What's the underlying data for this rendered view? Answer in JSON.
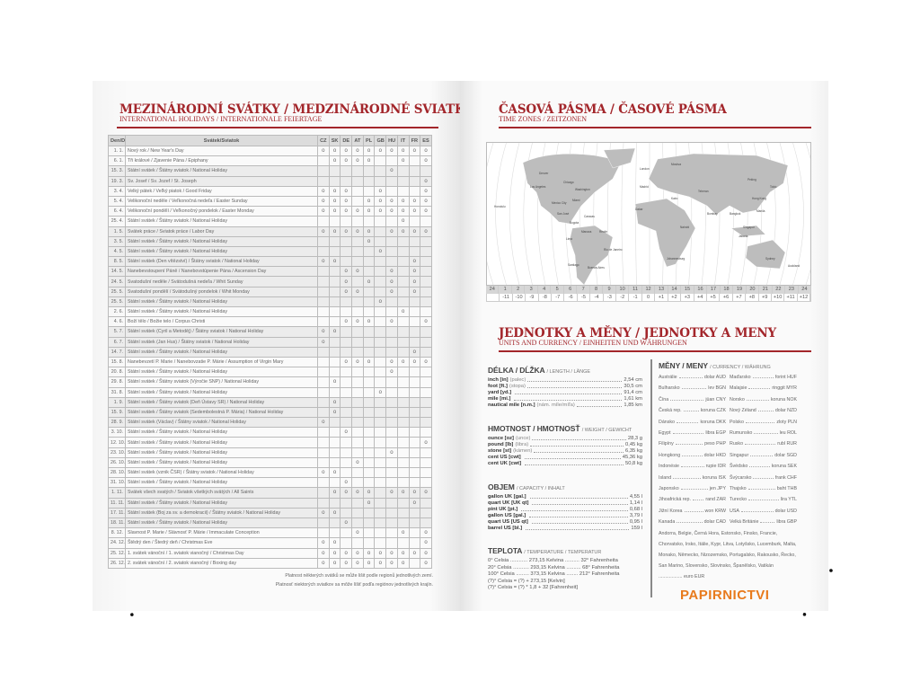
{
  "left": {
    "title": "MEZINÁRODNÍ SVÁTKY / MEDZINÁRODNÉ SVIATKY",
    "subtitle": "INTERNATIONAL HOLIDAYS / INTERNATIONALE FEIERTAGE",
    "table": {
      "headers": {
        "date": "Den/Deň",
        "name": "Svátek/Sviatok",
        "countries": [
          "CZ",
          "SK",
          "DE",
          "AT",
          "PL",
          "GB",
          "HU",
          "IT",
          "FR",
          "ES"
        ]
      },
      "mark": "o",
      "rows": [
        {
          "date": "1. 1.",
          "name": "Nový rok / New Year's Day",
          "marks": [
            0,
            1,
            2,
            3,
            4,
            5,
            6,
            7,
            8,
            9
          ]
        },
        {
          "date": "6. 1.",
          "name": "Tři králové / Zjavenie Pána / Epiphany",
          "marks": [
            1,
            2,
            3,
            4,
            7,
            9
          ]
        },
        {
          "date": "15. 3.",
          "name": "Státní svátek / Štátny sviatok / National Holiday",
          "marks": [
            6
          ]
        },
        {
          "date": "19. 3.",
          "name": "Sv. Josef / Sv. Jozef / St. Joseph",
          "marks": [
            9
          ]
        },
        {
          "date": "3. 4.",
          "name": "Velký pátek / Veľký piatok / Good Friday",
          "marks": [
            0,
            1,
            2,
            5,
            9
          ]
        },
        {
          "date": "5. 4.",
          "name": "Velikonoční neděle / Veľkonočná nedeľa / Easter Sunday",
          "marks": [
            0,
            1,
            2,
            4,
            5,
            6,
            7,
            8,
            9
          ]
        },
        {
          "date": "6. 4.",
          "name": "Velikonoční pondělí / Veľkonočný pondelok / Easter Monday",
          "marks": [
            0,
            1,
            2,
            3,
            4,
            5,
            6,
            7,
            8,
            9
          ]
        },
        {
          "date": "25. 4.",
          "name": "Státní svátek / Štátny sviatok / National Holiday",
          "marks": [
            7
          ]
        },
        {
          "date": "1. 5.",
          "name": "Svátek práce / Sviatok práce / Labor Day",
          "marks": [
            0,
            1,
            2,
            3,
            4,
            6,
            7,
            8,
            9
          ]
        },
        {
          "date": "3. 5.",
          "name": "Státní svátek / Štátny sviatok / National Holiday",
          "marks": [
            4
          ]
        },
        {
          "date": "4. 5.",
          "name": "Státní svátek / Štátny sviatok / National Holiday",
          "marks": [
            5
          ]
        },
        {
          "date": "8. 5.",
          "name": "Státní svátek (Den vítězství) / Štátny sviatok / National Holiday",
          "marks": [
            0,
            1,
            8
          ]
        },
        {
          "date": "14. 5.",
          "name": "Nanebevstoupení Páně / Nanebovstúpenie Pána / Ascension Day",
          "marks": [
            2,
            3,
            6,
            8
          ]
        },
        {
          "date": "24. 5.",
          "name": "Svatodušní neděle / Svätodušná nedeľa / Whit Sunday",
          "marks": [
            2,
            4,
            6,
            8
          ]
        },
        {
          "date": "25. 5.",
          "name": "Svatodušní pondělí / Svätodušný pondelok / Whit Monday",
          "marks": [
            2,
            3,
            6,
            8
          ]
        },
        {
          "date": "25. 5.",
          "name": "Státní svátek / Štátny sviatok / National Holiday",
          "marks": [
            5
          ]
        },
        {
          "date": "2. 6.",
          "name": "Státní svátek / Štátny sviatok / National Holiday",
          "marks": [
            7
          ]
        },
        {
          "date": "4. 6.",
          "name": "Boží tělo / Božie telo / Corpus Christi",
          "marks": [
            2,
            3,
            4,
            6,
            9
          ]
        },
        {
          "date": "5. 7.",
          "name": "Státní svátek (Cyril a Metoděj) / Štátny sviatok / National Holiday",
          "marks": [
            0,
            1
          ]
        },
        {
          "date": "6. 7.",
          "name": "Státní svátek (Jan Hus) / Štátny sviatok / National Holiday",
          "marks": [
            0
          ]
        },
        {
          "date": "14. 7.",
          "name": "Státní svátek / Štátny sviatok / National Holiday",
          "marks": [
            8
          ]
        },
        {
          "date": "15. 8.",
          "name": "Nanebevzetí P. Marie / Nanebovzatie P. Márie / Assumption of Virgin Mary",
          "marks": [
            2,
            3,
            4,
            6,
            7,
            8,
            9
          ]
        },
        {
          "date": "20. 8.",
          "name": "Státní svátek / Štátny sviatok / National Holiday",
          "marks": [
            6
          ]
        },
        {
          "date": "29. 8.",
          "name": "Státní svátek / Štátny sviatok (Výročie SNP) / National Holiday",
          "marks": [
            1
          ]
        },
        {
          "date": "31. 8.",
          "name": "Státní svátek / Štátny sviatok / National Holiday",
          "marks": [
            5
          ]
        },
        {
          "date": "1. 9.",
          "name": "Státní svátek / Štátny sviatok (Deň Ústavy SR) / National Holiday",
          "marks": [
            1
          ]
        },
        {
          "date": "15. 9.",
          "name": "Státní svátek / Štátny sviatok (Sedembolestná P. Mária) / National Holiday",
          "marks": [
            1
          ]
        },
        {
          "date": "28. 9.",
          "name": "Státní svátek (Václav) / Štátny sviatok / National Holiday",
          "marks": [
            0
          ]
        },
        {
          "date": "3. 10.",
          "name": "Státní svátek / Štátny sviatok / National Holiday",
          "marks": [
            2
          ]
        },
        {
          "date": "12. 10.",
          "name": "Státní svátek / Štátny sviatok / National Holiday",
          "marks": [
            9
          ]
        },
        {
          "date": "23. 10.",
          "name": "Státní svátek / Štátny sviatok / National Holiday",
          "marks": [
            6
          ]
        },
        {
          "date": "26. 10.",
          "name": "Státní svátek / Štátny sviatok / National Holiday",
          "marks": [
            3
          ]
        },
        {
          "date": "28. 10.",
          "name": "Státní svátek (vznik ČSR) / Štátny sviatok / National Holiday",
          "marks": [
            0,
            1
          ]
        },
        {
          "date": "31. 10.",
          "name": "Státní svátek / Štátny sviatok / National Holiday",
          "marks": [
            2
          ]
        },
        {
          "date": "1. 11.",
          "name": "Svátek všech svatých / Sviatok všetkých svätých / All Saints",
          "marks": [
            1,
            2,
            3,
            4,
            6,
            7,
            8,
            9
          ]
        },
        {
          "date": "11. 11.",
          "name": "Státní svátek / Štátny sviatok / National Holiday",
          "marks": [
            4,
            8
          ]
        },
        {
          "date": "17. 11.",
          "name": "Státní svátek (Boj za sv. a demokracii) / Štátny sviatok / National Holiday",
          "marks": [
            0,
            1
          ]
        },
        {
          "date": "18. 11.",
          "name": "Státní svátek / Štátny sviatok / National Holiday",
          "marks": [
            2
          ]
        },
        {
          "date": "8. 12.",
          "name": "Slavnost P. Marie / Slávnosť P. Márie / Immaculate Conception",
          "marks": [
            3,
            7,
            9
          ]
        },
        {
          "date": "24. 12.",
          "name": "Štědrý den / Štedrý deň / Christmas Eve",
          "marks": [
            0,
            1,
            9
          ]
        },
        {
          "date": "25. 12.",
          "name": "1. svátek vánoční / 1. sviatok vianočný / Christmas Day",
          "marks": [
            0,
            1,
            2,
            3,
            4,
            5,
            6,
            7,
            8,
            9
          ]
        },
        {
          "date": "26. 12.",
          "name": "2. svátek vánoční / 2. sviatok vianočný / Boxing day",
          "marks": [
            0,
            1,
            2,
            3,
            4,
            5,
            6,
            7,
            9
          ]
        }
      ]
    },
    "note_cz": "Platnost některých svátků se může lišit podle regionů jednotlivých zemí.",
    "note_sk": "Platnosť niektorých sviatkov sa môže líšiť podľa regiónov jednotlivých krajín."
  },
  "right": {
    "tz_title": "ČASOVÁ PÁSMA / ČASOVÉ PÁSMA",
    "tz_subtitle": "TIME ZONES / ZEITZONEN",
    "tz_hours": [
      "24",
      "1",
      "2",
      "3",
      "4",
      "5",
      "6",
      "7",
      "8",
      "9",
      "10",
      "11",
      "12",
      "13",
      "14",
      "15",
      "16",
      "17",
      "18",
      "19",
      "20",
      "21",
      "22",
      "23",
      "24"
    ],
    "tz_offsets": [
      "",
      "-11",
      "-10",
      "-9",
      "-8",
      "-7",
      "-6",
      "-5",
      "-4",
      "-3",
      "-2",
      "-1",
      "0",
      "+1",
      "+2",
      "+3",
      "+4",
      "+5",
      "+6",
      "+7",
      "+8",
      "+9",
      "+10",
      "+11",
      "+12"
    ],
    "cities": [
      "Honolulu",
      "Los Angeles",
      "Denver",
      "Chicago",
      "Washington",
      "Miami",
      "Mexico City",
      "San José",
      "Bogota",
      "Caracas",
      "Lima",
      "Manaus",
      "Recife",
      "Rio de Janeiro",
      "Santiago",
      "Buenos Aires",
      "London",
      "Madrid",
      "Dakar",
      "Moskva",
      "Kairo",
      "Nairobi",
      "Johannesburg",
      "Teheran",
      "Bombay",
      "Bangkok",
      "Peking",
      "Hong Kong",
      "Tokio",
      "Manila",
      "Singapur",
      "Jakarta",
      "Sydney",
      "Auckland"
    ],
    "units_title": "JEDNOTKY A MĚNY / JEDNOTKY A MENY",
    "units_subtitle": "UNITS AND CURRENCY / EINHEITEN UND WÄHRUNGEN",
    "length": {
      "title": "DÉLKA / DĹŽKA",
      "sub": "/ LENGTH / LÄNGE",
      "items": [
        {
          "unit": "inch [in]",
          "note": "(palec)",
          "value": "2,54 cm"
        },
        {
          "unit": "foot [ft.]",
          "note": "(stopa)",
          "value": "30,5 cm"
        },
        {
          "unit": "yard [yd.]",
          "note": "",
          "value": "91,4 cm"
        },
        {
          "unit": "mile [mi.]",
          "note": "",
          "value": "1,61 km"
        },
        {
          "unit": "nautical mile [n.m.]",
          "note": "(nám. míle/míľa)",
          "value": "1,85 km"
        }
      ]
    },
    "weight": {
      "title": "HMOTNOST / HMOTNOSŤ",
      "sub": "/ WEIGHT / GEWICHT",
      "items": [
        {
          "unit": "ounce [oz]",
          "note": "(unce)",
          "value": "28,3 g"
        },
        {
          "unit": "pound [lb]",
          "note": "(libra)",
          "value": "0,45 kg"
        },
        {
          "unit": "stone [st]",
          "note": "(kámen)",
          "value": "6,35 kg"
        },
        {
          "unit": "cent US [cwt]",
          "note": "",
          "value": "45,36 kg"
        },
        {
          "unit": "cent UK [cwt]",
          "note": "",
          "value": "50,8 kg"
        }
      ]
    },
    "capacity": {
      "title": "OBJEM",
      "sub": "/ CAPACITY / INHALT",
      "items": [
        {
          "unit": "gallon UK [gal.]",
          "note": "",
          "value": "4,55 l"
        },
        {
          "unit": "quart UK [UK qt]",
          "note": "",
          "value": "1,14 l"
        },
        {
          "unit": "pint UK [pt.]",
          "note": "",
          "value": "0,68 l"
        },
        {
          "unit": "gallon US [gal.]",
          "note": "",
          "value": "3,79 l"
        },
        {
          "unit": "quart US [US qt]",
          "note": "",
          "value": "0,95 l"
        },
        {
          "unit": "barrel US [bl.]",
          "note": "",
          "value": "159 l"
        }
      ]
    },
    "temperature": {
      "title": "TEPLOTA",
      "sub": "/ TEMPERATURE / TEMPERATUR",
      "lines": [
        "0° Celsia ............ 273,15 Kelvina .......... 32° Fahrenheita",
        "20° Celsia ........... 293,15 Kelvina .......... 68° Fahrenheita",
        "100° Celsia ......... 373,15 Kelvina ........ 212° Fahrenheita",
        "(?)° Celsia = (?) + 273,15 [Kelvin]",
        "(?)° Celsia = (?) * 1,8 + 32 [Fahrenheit]"
      ]
    },
    "currency": {
      "title": "MĚNY / MENY",
      "sub": "/ CURRENCY / WÄHRUNG",
      "items": [
        {
          "country": "Austrálie",
          "currency": "dolar AUD"
        },
        {
          "country": "Bulharsko",
          "currency": "lev BGN"
        },
        {
          "country": "Čína",
          "currency": "jüan CNY"
        },
        {
          "country": "Česká rep.",
          "currency": "koruna CZK"
        },
        {
          "country": "Dánsko",
          "currency": "koruna DKK"
        },
        {
          "country": "Egypt",
          "currency": "libra EGP"
        },
        {
          "country": "Filipíny",
          "currency": "peso PHP"
        },
        {
          "country": "Hongkong",
          "currency": "dolar HKD"
        },
        {
          "country": "Indonésie",
          "currency": "rupie IDR"
        },
        {
          "country": "Island",
          "currency": "koruna ISK"
        },
        {
          "country": "Japonsko",
          "currency": "jen JPY"
        },
        {
          "country": "Jihoafrická rep.",
          "currency": "rand ZAR"
        },
        {
          "country": "Jižní Korea",
          "currency": "won KRW"
        },
        {
          "country": "Kanada",
          "currency": "dolar CAD"
        },
        {
          "country": "Maďarsko",
          "currency": "forint HUF"
        },
        {
          "country": "Malajsie",
          "currency": "ringgit MYR"
        },
        {
          "country": "Norsko",
          "currency": "koruna NOK"
        },
        {
          "country": "Nový Zéland",
          "currency": "dolar NZD"
        },
        {
          "country": "Polsko",
          "currency": "zloty PLN"
        },
        {
          "country": "Rumunsko",
          "currency": "leu ROL"
        },
        {
          "country": "Rusko",
          "currency": "rubl RUR"
        },
        {
          "country": "Singapur",
          "currency": "dolar SGD"
        },
        {
          "country": "Švédsko",
          "currency": "koruna SEK"
        },
        {
          "country": "Švýcarsko",
          "currency": "frank CHF"
        },
        {
          "country": "Thajsko",
          "currency": "baht THB"
        },
        {
          "country": "Turecko",
          "currency": "lira YTL"
        },
        {
          "country": "USA",
          "currency": "dolar USD"
        },
        {
          "country": "Velká Británie",
          "currency": "libra GBP"
        }
      ]
    },
    "euro_countries": "Andorra, Belgie, Černá Hora, Estonsko, Finsko, Francie, Chorvatsko, Irsko, Itálie, Kypr, Litva, Lotyšsko, Lucemburk, Malta, Monako, Německo, Nizozemsko, Portugalsko, Rakousko, Řecko, San Marino, Slovensko, Slovinsko, Španělsko, Vatikán",
    "euro_currency": "euro EUR"
  },
  "watermark": {
    "text": "PAPIRNICTVI",
    "color": "#e87a1c"
  },
  "colors": {
    "accent": "#a3262b"
  }
}
